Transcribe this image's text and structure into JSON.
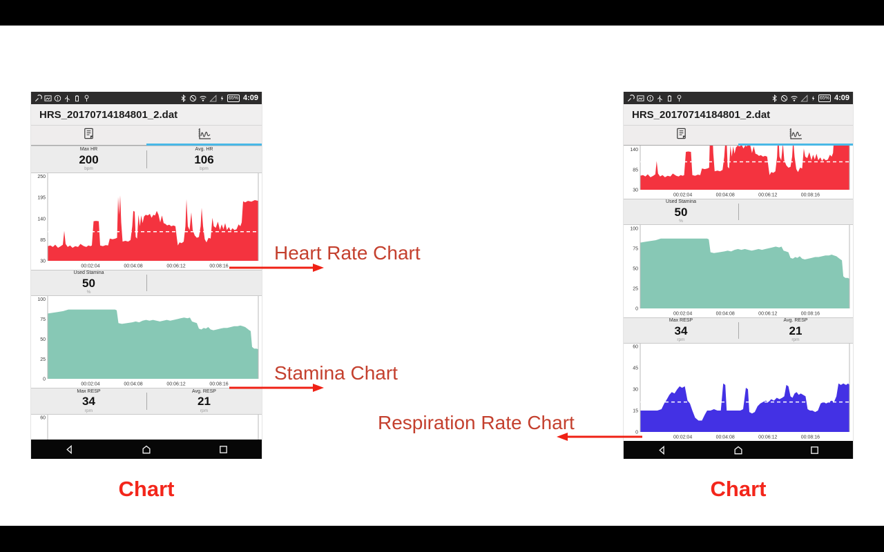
{
  "annotations": {
    "heart_rate": "Heart Rate Chart",
    "stamina": "Stamina Chart",
    "respiration": "Respiration Rate Chart",
    "caption_left": "Chart",
    "caption_right": "Chart"
  },
  "phone": {
    "status_bar": {
      "time": "4:09",
      "battery_percent": "65%",
      "left_icons": [
        "wrench-icon",
        "image-icon",
        "alert-circle-icon",
        "usb-icon",
        "battery-small-icon",
        "pin-icon"
      ],
      "right_icons": [
        "bluetooth-icon",
        "blocked-icon",
        "wifi-icon",
        "signal-triangle-icon",
        "flash-icon",
        "battery-pill"
      ]
    },
    "title": "HRS_20170714184801_2.dat",
    "tabs": [
      {
        "name": "data-tab",
        "icon": "document-icon",
        "selected": false
      },
      {
        "name": "chart-tab",
        "icon": "line-chart-icon",
        "selected": true
      }
    ],
    "stats": {
      "max_hr": {
        "label": "Max HR",
        "value": "200",
        "unit": "bpm"
      },
      "avg_hr": {
        "label": "Avg. HR",
        "value": "106",
        "unit": "bpm"
      },
      "used_stamina": {
        "label": "Used Stamina",
        "value": "50",
        "unit": "%"
      },
      "max_resp": {
        "label": "Max RESP",
        "value": "34",
        "unit": "rpm"
      },
      "avg_resp": {
        "label": "Avg. RESP",
        "value": "21",
        "unit": "rpm"
      }
    }
  },
  "chart_data": [
    {
      "id": "heart_rate",
      "type": "area",
      "title": "Heart Rate",
      "color": "#f4333f",
      "avg_line": 106,
      "avg_line_color": "#ffffff",
      "duration": 610,
      "ylim": [
        30,
        250
      ],
      "yticks": [
        30,
        85,
        140,
        195,
        250
      ],
      "xticks": [
        {
          "t": 124,
          "label": "00:02:04"
        },
        {
          "t": 248,
          "label": "00:04:08"
        },
        {
          "t": 372,
          "label": "00:06:12"
        },
        {
          "t": 496,
          "label": "00:08:16"
        }
      ],
      "points": [
        [
          0,
          68
        ],
        [
          8,
          70
        ],
        [
          15,
          66
        ],
        [
          22,
          72
        ],
        [
          30,
          64
        ],
        [
          38,
          68
        ],
        [
          44,
          72
        ],
        [
          48,
          108
        ],
        [
          52,
          74
        ],
        [
          58,
          66
        ],
        [
          65,
          70
        ],
        [
          72,
          64
        ],
        [
          80,
          68
        ],
        [
          88,
          66
        ],
        [
          95,
          74
        ],
        [
          100,
          71
        ],
        [
          105,
          68
        ],
        [
          112,
          66
        ],
        [
          118,
          70
        ],
        [
          124,
          68
        ],
        [
          128,
          70
        ],
        [
          133,
          133
        ],
        [
          140,
          134
        ],
        [
          148,
          133
        ],
        [
          152,
          70
        ],
        [
          160,
          68
        ],
        [
          168,
          71
        ],
        [
          175,
          70
        ],
        [
          180,
          88
        ],
        [
          188,
          86
        ],
        [
          196,
          88
        ],
        [
          201,
          90
        ],
        [
          204,
          196
        ],
        [
          207,
          150
        ],
        [
          210,
          200
        ],
        [
          213,
          130
        ],
        [
          217,
          80
        ],
        [
          225,
          82
        ],
        [
          233,
          80
        ],
        [
          240,
          84
        ],
        [
          245,
          120
        ],
        [
          248,
          160
        ],
        [
          252,
          158
        ],
        [
          255,
          92
        ],
        [
          259,
          88
        ],
        [
          263,
          150
        ],
        [
          267,
          120
        ],
        [
          271,
          148
        ],
        [
          275,
          128
        ],
        [
          279,
          145
        ],
        [
          284,
          150
        ],
        [
          290,
          148
        ],
        [
          296,
          152
        ],
        [
          301,
          142
        ],
        [
          306,
          150
        ],
        [
          311,
          148
        ],
        [
          316,
          160
        ],
        [
          321,
          150
        ],
        [
          326,
          130
        ],
        [
          331,
          148
        ],
        [
          336,
          128
        ],
        [
          341,
          126
        ],
        [
          346,
          122
        ],
        [
          352,
          124
        ],
        [
          358,
          120
        ],
        [
          364,
          122
        ],
        [
          370,
          120
        ],
        [
          374,
          90
        ],
        [
          377,
          70
        ],
        [
          382,
          78
        ],
        [
          388,
          76
        ],
        [
          394,
          80
        ],
        [
          399,
          120
        ],
        [
          402,
          190
        ],
        [
          406,
          120
        ],
        [
          411,
          110
        ],
        [
          416,
          156
        ],
        [
          420,
          110
        ],
        [
          426,
          96
        ],
        [
          432,
          90
        ],
        [
          438,
          92
        ],
        [
          443,
          120
        ],
        [
          446,
          168
        ],
        [
          450,
          120
        ],
        [
          455,
          86
        ],
        [
          460,
          78
        ],
        [
          466,
          90
        ],
        [
          472,
          88
        ],
        [
          477,
          142
        ],
        [
          481,
          120
        ],
        [
          487,
          116
        ],
        [
          493,
          132
        ],
        [
          499,
          110
        ],
        [
          504,
          125
        ],
        [
          509,
          112
        ],
        [
          514,
          128
        ],
        [
          519,
          110
        ],
        [
          525,
          118
        ],
        [
          530,
          108
        ],
        [
          535,
          115
        ],
        [
          541,
          110
        ],
        [
          547,
          112
        ],
        [
          553,
          125
        ],
        [
          558,
          120
        ],
        [
          562,
          130
        ],
        [
          566,
          185
        ],
        [
          572,
          182
        ],
        [
          580,
          186
        ],
        [
          590,
          184
        ],
        [
          600,
          188
        ],
        [
          610,
          186
        ]
      ]
    },
    {
      "id": "stamina",
      "type": "area",
      "title": "Stamina",
      "color": "#87c8b5",
      "avg_line": null,
      "avg_line_color": "#ffffff",
      "duration": 610,
      "ylim": [
        0,
        100
      ],
      "yticks": [
        0,
        25,
        50,
        75,
        100
      ],
      "xticks": [
        {
          "t": 124,
          "label": "00:02:04"
        },
        {
          "t": 248,
          "label": "00:04:08"
        },
        {
          "t": 372,
          "label": "00:06:12"
        },
        {
          "t": 496,
          "label": "00:08:16"
        }
      ],
      "points": [
        [
          0,
          82
        ],
        [
          15,
          83
        ],
        [
          30,
          84
        ],
        [
          45,
          85
        ],
        [
          60,
          87
        ],
        [
          90,
          87
        ],
        [
          120,
          87
        ],
        [
          150,
          87
        ],
        [
          180,
          87
        ],
        [
          195,
          87
        ],
        [
          200,
          86
        ],
        [
          205,
          70
        ],
        [
          215,
          69
        ],
        [
          230,
          70
        ],
        [
          245,
          71
        ],
        [
          255,
          72
        ],
        [
          265,
          71
        ],
        [
          275,
          73
        ],
        [
          285,
          74
        ],
        [
          295,
          73
        ],
        [
          305,
          74
        ],
        [
          315,
          73
        ],
        [
          325,
          72
        ],
        [
          335,
          73
        ],
        [
          345,
          74
        ],
        [
          355,
          73
        ],
        [
          365,
          74
        ],
        [
          375,
          75
        ],
        [
          385,
          76
        ],
        [
          395,
          77
        ],
        [
          405,
          76
        ],
        [
          412,
          77
        ],
        [
          418,
          72
        ],
        [
          425,
          71
        ],
        [
          432,
          70
        ],
        [
          438,
          63
        ],
        [
          445,
          62
        ],
        [
          452,
          64
        ],
        [
          458,
          63
        ],
        [
          465,
          65
        ],
        [
          472,
          62
        ],
        [
          480,
          61
        ],
        [
          490,
          62
        ],
        [
          500,
          63
        ],
        [
          510,
          64
        ],
        [
          520,
          64
        ],
        [
          530,
          65
        ],
        [
          540,
          66
        ],
        [
          550,
          66
        ],
        [
          558,
          67
        ],
        [
          565,
          66
        ],
        [
          572,
          65
        ],
        [
          578,
          63
        ],
        [
          584,
          61
        ],
        [
          588,
          60
        ],
        [
          592,
          40
        ],
        [
          598,
          38
        ],
        [
          605,
          38
        ],
        [
          610,
          37
        ]
      ]
    },
    {
      "id": "respiration",
      "type": "area",
      "title": "Respiration Rate",
      "color": "#4331e4",
      "avg_line": 21,
      "avg_line_color": "#ffffff",
      "duration": 610,
      "ylim": [
        0,
        60
      ],
      "yticks": [
        0,
        15,
        30,
        45,
        60
      ],
      "xticks": [
        {
          "t": 124,
          "label": "00:02:04"
        },
        {
          "t": 248,
          "label": "00:04:08"
        },
        {
          "t": 372,
          "label": "00:06:12"
        },
        {
          "t": 496,
          "label": "00:08:16"
        }
      ],
      "points": [
        [
          0,
          15
        ],
        [
          25,
          15
        ],
        [
          50,
          15
        ],
        [
          62,
          16
        ],
        [
          70,
          20
        ],
        [
          78,
          23
        ],
        [
          85,
          26
        ],
        [
          92,
          28
        ],
        [
          100,
          27
        ],
        [
          108,
          30
        ],
        [
          115,
          32
        ],
        [
          122,
          31
        ],
        [
          130,
          32
        ],
        [
          138,
          22
        ],
        [
          145,
          20
        ],
        [
          152,
          15
        ],
        [
          160,
          10
        ],
        [
          170,
          8
        ],
        [
          180,
          8
        ],
        [
          188,
          12
        ],
        [
          195,
          15
        ],
        [
          205,
          15
        ],
        [
          215,
          16
        ],
        [
          225,
          15
        ],
        [
          235,
          15
        ],
        [
          242,
          34
        ],
        [
          248,
          33
        ],
        [
          252,
          15
        ],
        [
          262,
          15
        ],
        [
          272,
          15
        ],
        [
          282,
          15
        ],
        [
          292,
          15
        ],
        [
          300,
          16
        ],
        [
          308,
          31
        ],
        [
          314,
          30
        ],
        [
          318,
          14
        ],
        [
          326,
          13
        ],
        [
          334,
          14
        ],
        [
          342,
          18
        ],
        [
          350,
          20
        ],
        [
          358,
          21
        ],
        [
          366,
          22
        ],
        [
          374,
          21
        ],
        [
          382,
          23
        ],
        [
          390,
          22
        ],
        [
          398,
          24
        ],
        [
          406,
          23
        ],
        [
          414,
          24
        ],
        [
          420,
          25
        ],
        [
          426,
          33
        ],
        [
          432,
          32
        ],
        [
          438,
          25
        ],
        [
          444,
          24
        ],
        [
          450,
          27
        ],
        [
          456,
          28
        ],
        [
          462,
          26
        ],
        [
          468,
          27
        ],
        [
          475,
          26
        ],
        [
          482,
          25
        ],
        [
          488,
          16
        ],
        [
          495,
          15
        ],
        [
          502,
          15
        ],
        [
          510,
          14
        ],
        [
          518,
          15
        ],
        [
          526,
          20
        ],
        [
          534,
          21
        ],
        [
          542,
          20
        ],
        [
          550,
          21
        ],
        [
          558,
          22
        ],
        [
          565,
          21
        ],
        [
          572,
          25
        ],
        [
          578,
          34
        ],
        [
          585,
          33
        ],
        [
          592,
          34
        ],
        [
          600,
          33
        ],
        [
          606,
          34
        ],
        [
          610,
          33
        ]
      ]
    }
  ],
  "views": {
    "left_hr": {
      "chart": 0,
      "ymin": 30,
      "ymax": 258,
      "yticks": [
        250,
        195,
        140,
        85,
        30
      ],
      "show_xlabels": true,
      "show_avg": true
    },
    "left_stamina": {
      "chart": 1,
      "ymin": 0,
      "ymax": 104,
      "yticks": [
        100,
        75,
        50,
        25,
        0
      ],
      "show_xlabels": true,
      "show_avg": false
    },
    "left_resp_top": {
      "chart": 2,
      "ymin": 44,
      "ymax": 62,
      "yticks": [
        60
      ],
      "show_xlabels": false,
      "show_avg": false
    },
    "right_hr": {
      "chart": 0,
      "ymin": 30,
      "ymax": 150,
      "yticks": [
        140,
        85,
        30
      ],
      "show_xlabels": true,
      "show_avg": true
    },
    "right_stamina": {
      "chart": 1,
      "ymin": 0,
      "ymax": 104,
      "yticks": [
        100,
        75,
        50,
        25,
        0
      ],
      "show_xlabels": true,
      "show_avg": false
    },
    "right_resp": {
      "chart": 2,
      "ymin": 0,
      "ymax": 62,
      "yticks": [
        60,
        45,
        30,
        15,
        0
      ],
      "show_xlabels": true,
      "show_avg": true
    }
  }
}
